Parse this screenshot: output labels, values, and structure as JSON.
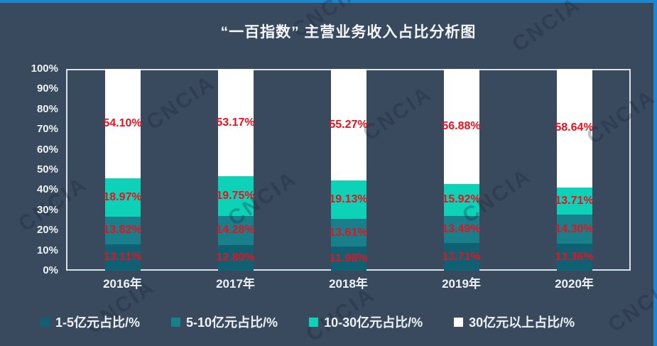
{
  "title": "“一百指数” 主营业务收入占比分析图",
  "watermark": {
    "text": "CNCIA"
  },
  "colors": {
    "background": "#394a5e",
    "accent_strip": "#1e86cf",
    "plot_border": "#dce1e7",
    "data_label": "#e8111e",
    "axis_text": "#eef2f6"
  },
  "chart_data": {
    "type": "bar",
    "stacked": true,
    "title": "“一百指数” 主营业务收入占比分析图",
    "categories": [
      "2016年",
      "2017年",
      "2018年",
      "2019年",
      "2020年"
    ],
    "series": [
      {
        "name": "1-5亿元占比/%",
        "color": "#0f6073",
        "values": [
          13.11,
          12.8,
          11.98,
          13.71,
          13.36
        ]
      },
      {
        "name": "5-10亿元占比/%",
        "color": "#187f8b",
        "values": [
          13.82,
          14.28,
          13.61,
          13.49,
          14.3
        ]
      },
      {
        "name": "10-30亿元占比/%",
        "color": "#0ed2b8",
        "values": [
          18.97,
          19.75,
          19.13,
          15.92,
          13.71
        ]
      },
      {
        "name": "30亿元以上占比/%",
        "color": "#ffffff",
        "values": [
          54.1,
          53.17,
          55.27,
          56.88,
          58.64
        ]
      }
    ],
    "value_suffix": "%",
    "ylabel": "",
    "xlabel": "",
    "ylim": [
      0,
      100
    ],
    "yticks": [
      "100%",
      "90%",
      "80%",
      "70%",
      "60%",
      "50%",
      "40%",
      "30%",
      "20%",
      "10%",
      "0%"
    ],
    "grid": false,
    "legend_position": "bottom",
    "data_labels_visible": true
  }
}
